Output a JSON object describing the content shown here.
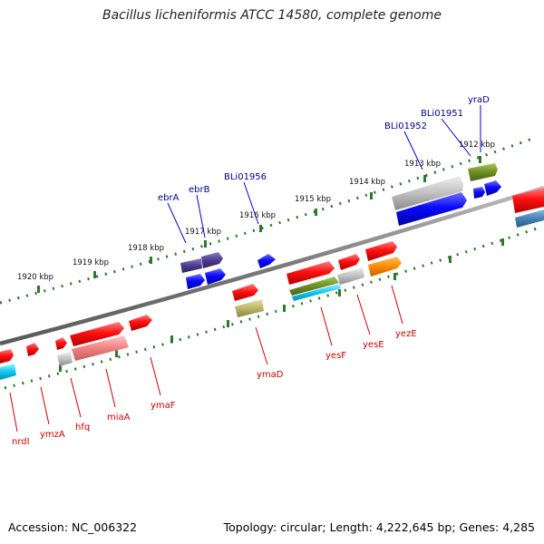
{
  "title": "Bacillus licheniformis ATCC 14580, complete genome",
  "footer": {
    "accession": "Accession: NC_006322",
    "summary": "Topology: circular; Length: 4,222,645 bp; Genes: 4,285"
  },
  "colors": {
    "backbone": "#808080",
    "tick": "#2a7a2a",
    "top_label": "#00008b",
    "bottom_label": "#cc0000"
  },
  "kbp_ticks": [
    "1912 kbp",
    "1913 kbp",
    "1914 kbp",
    "1915 kbp",
    "1916 kbp",
    "1917 kbp",
    "1918 kbp",
    "1919 kbp",
    "1920 kbp"
  ],
  "top_labels": [
    "yraD",
    "BLi01951",
    "BLi01952",
    "BLi01956",
    "ebrB",
    "ebrA"
  ],
  "bottom_labels": [
    "nrdI",
    "ymzA",
    "hfq",
    "miaA",
    "ymaF",
    "ymaD",
    "yesF",
    "yesE",
    "yezE"
  ]
}
